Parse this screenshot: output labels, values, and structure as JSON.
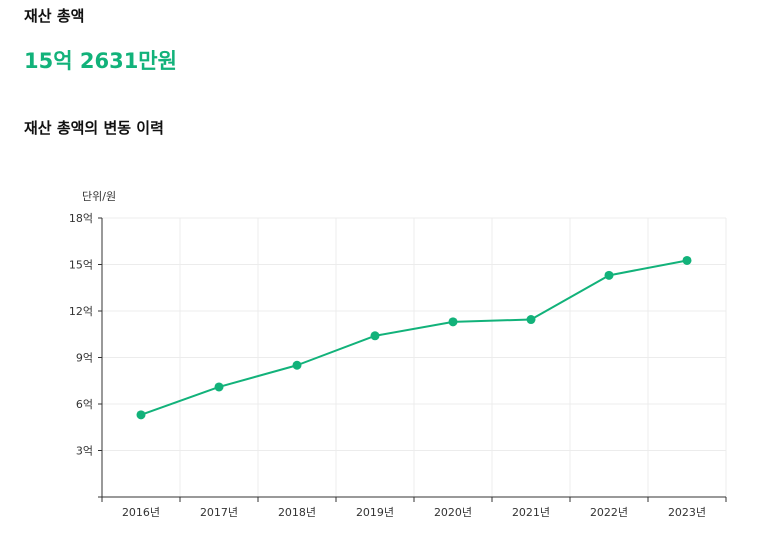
{
  "summary": {
    "label": "재산 총액",
    "amount": "15억 2631만원",
    "history_title": "재산 총액의 변동 이력"
  },
  "colors": {
    "accent": "#12b27a",
    "grid": "#ececec",
    "axis": "#333333"
  },
  "chart_data": {
    "type": "line",
    "unit_label": "단위/원",
    "categories": [
      "2016년",
      "2017년",
      "2018년",
      "2019년",
      "2020년",
      "2021년",
      "2022년",
      "2023년"
    ],
    "series": [
      {
        "values": [
          5.3,
          7.1,
          8.5,
          10.4,
          11.3,
          11.45,
          14.3,
          15.26
        ]
      }
    ],
    "yticks": [
      3,
      6,
      9,
      12,
      15,
      18
    ],
    "ytick_labels": [
      "3억",
      "6억",
      "9억",
      "12억",
      "15억",
      "18억"
    ],
    "ylim": [
      0,
      18
    ],
    "grid": true
  }
}
